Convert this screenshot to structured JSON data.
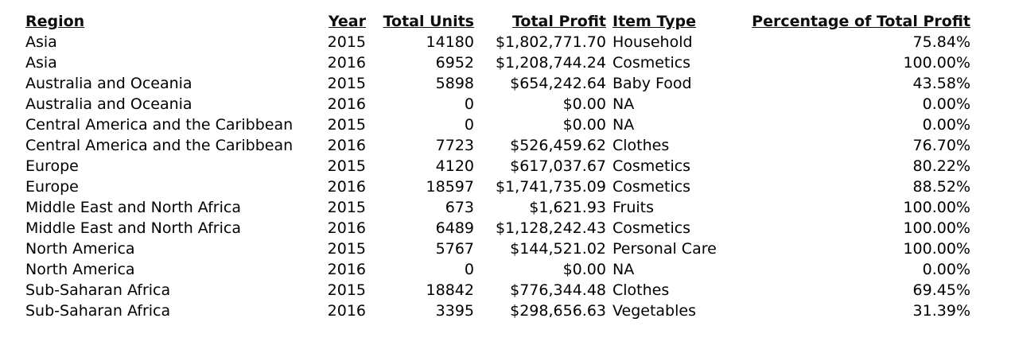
{
  "headers": {
    "region": "Region",
    "year": "Year",
    "total_units": "Total Units",
    "total_profit": "Total Profit",
    "item_type": "Item Type",
    "pct_total_profit": "Percentage of Total Profit"
  },
  "rows": [
    {
      "region": "Asia",
      "year": "2015",
      "total_units": "14180",
      "total_profit": "$1,802,771.70",
      "item_type": "Household",
      "pct_total_profit": "75.84%"
    },
    {
      "region": "Asia",
      "year": "2016",
      "total_units": "6952",
      "total_profit": "$1,208,744.24",
      "item_type": "Cosmetics",
      "pct_total_profit": "100.00%"
    },
    {
      "region": "Australia and Oceania",
      "year": "2015",
      "total_units": "5898",
      "total_profit": "$654,242.64",
      "item_type": "Baby Food",
      "pct_total_profit": "43.58%"
    },
    {
      "region": "Australia and Oceania",
      "year": "2016",
      "total_units": "0",
      "total_profit": "$0.00",
      "item_type": "NA",
      "pct_total_profit": "0.00%"
    },
    {
      "region": "Central America and the Caribbean",
      "year": "2015",
      "total_units": "0",
      "total_profit": "$0.00",
      "item_type": "NA",
      "pct_total_profit": "0.00%"
    },
    {
      "region": "Central America and the Caribbean",
      "year": "2016",
      "total_units": "7723",
      "total_profit": "$526,459.62",
      "item_type": "Clothes",
      "pct_total_profit": "76.70%"
    },
    {
      "region": "Europe",
      "year": "2015",
      "total_units": "4120",
      "total_profit": "$617,037.67",
      "item_type": "Cosmetics",
      "pct_total_profit": "80.22%"
    },
    {
      "region": "Europe",
      "year": "2016",
      "total_units": "18597",
      "total_profit": "$1,741,735.09",
      "item_type": "Cosmetics",
      "pct_total_profit": "88.52%"
    },
    {
      "region": "Middle East and North Africa",
      "year": "2015",
      "total_units": "673",
      "total_profit": "$1,621.93",
      "item_type": "Fruits",
      "pct_total_profit": "100.00%"
    },
    {
      "region": "Middle East and North Africa",
      "year": "2016",
      "total_units": "6489",
      "total_profit": "$1,128,242.43",
      "item_type": "Cosmetics",
      "pct_total_profit": "100.00%"
    },
    {
      "region": "North America",
      "year": "2015",
      "total_units": "5767",
      "total_profit": "$144,521.02",
      "item_type": "Personal Care",
      "pct_total_profit": "100.00%"
    },
    {
      "region": "North America",
      "year": "2016",
      "total_units": "0",
      "total_profit": "$0.00",
      "item_type": "NA",
      "pct_total_profit": "0.00%"
    },
    {
      "region": "Sub-Saharan Africa",
      "year": "2015",
      "total_units": "18842",
      "total_profit": "$776,344.48",
      "item_type": "Clothes",
      "pct_total_profit": "69.45%"
    },
    {
      "region": "Sub-Saharan Africa",
      "year": "2016",
      "total_units": "3395",
      "total_profit": "$298,656.63",
      "item_type": "Vegetables",
      "pct_total_profit": "31.39%"
    }
  ]
}
